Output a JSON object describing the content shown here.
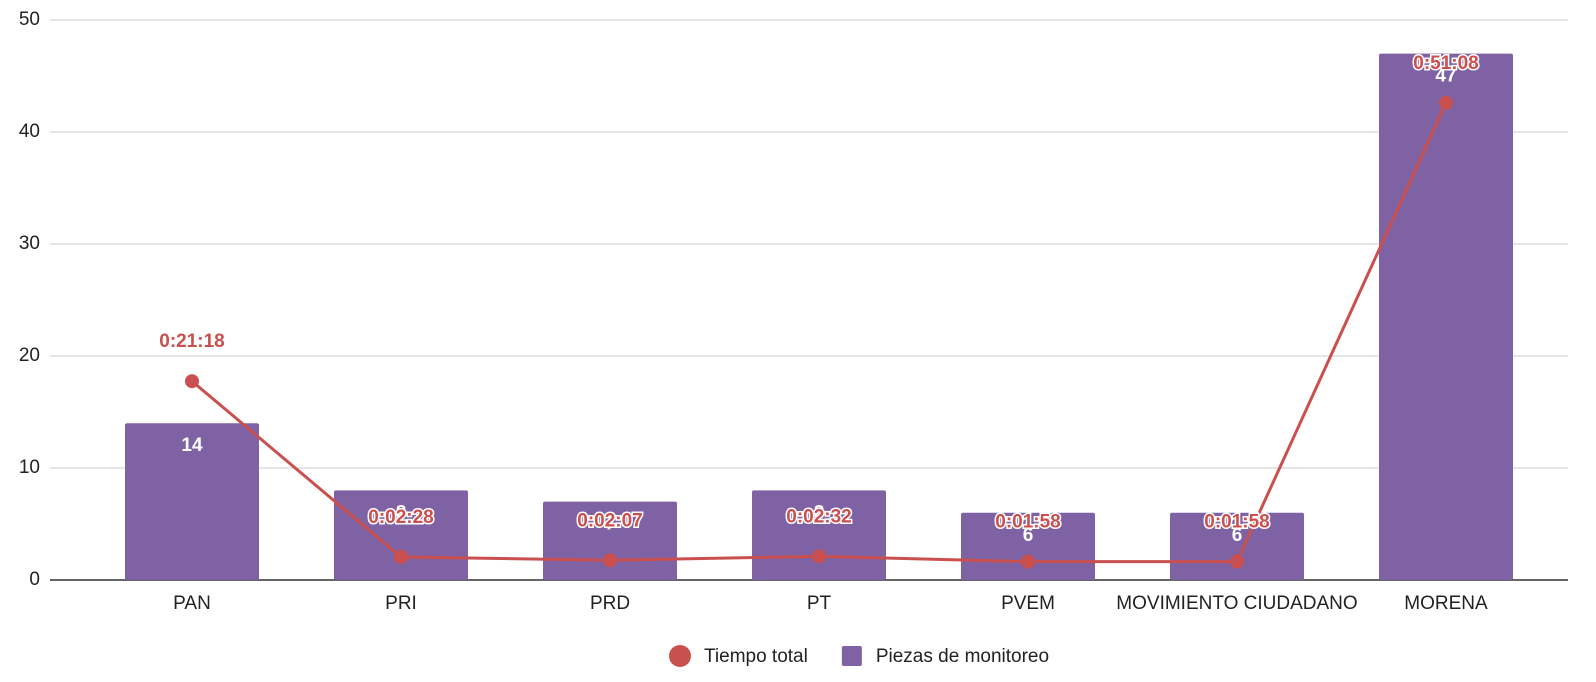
{
  "chart_data": {
    "type": "bar-line",
    "categories": [
      "PAN",
      "PRI",
      "PRD",
      "PT",
      "PVEM",
      "MOVIMIENTO CIUDADANO",
      "MORENA"
    ],
    "series": [
      {
        "name": "Tiempo total",
        "type": "line",
        "color": "#c9504f",
        "axis": "y2",
        "values": [
          21.3,
          2.467,
          2.117,
          2.533,
          1.967,
          1.967,
          51.133
        ],
        "value_labels": [
          "0:21:18",
          "0:02:28",
          "0:02:07",
          "0:02:32",
          "0:01:58",
          "0:01:58",
          "0:51:08"
        ]
      },
      {
        "name": "Piezas de monitoreo",
        "type": "bar",
        "color": "#7e62a3",
        "values": [
          14,
          8,
          7,
          8,
          6,
          6,
          47
        ]
      }
    ],
    "ylim": [
      0,
      50
    ],
    "yticks": [
      0,
      10,
      20,
      30,
      40,
      50
    ],
    "y2lim": [
      0,
      60
    ],
    "grid": true,
    "legend": "bottom"
  }
}
